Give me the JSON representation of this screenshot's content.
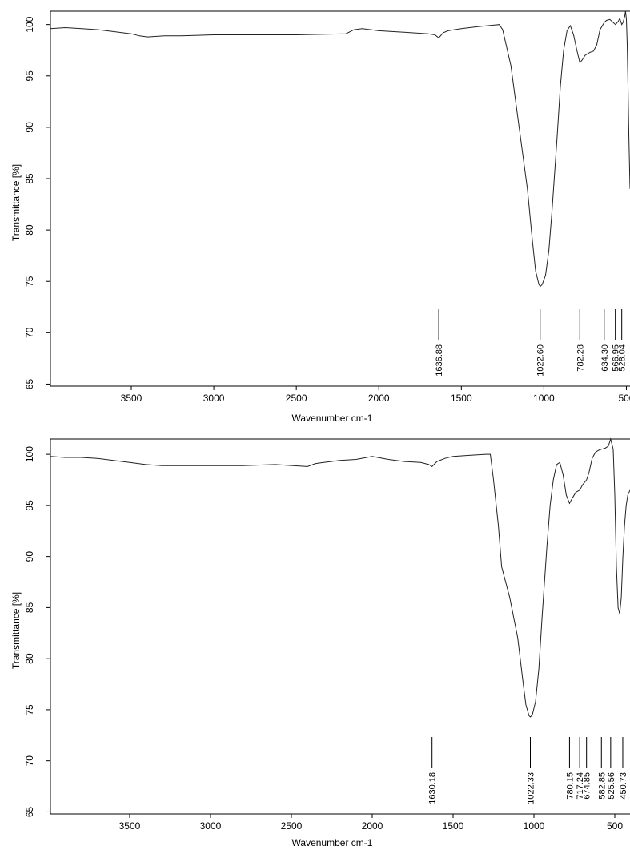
{
  "chart_data": [
    {
      "type": "line",
      "xlabel": "Wavenumber cm-1",
      "ylabel": "Transmittance [%]",
      "xlim": [
        3990,
        478
      ],
      "ylim": [
        64.8,
        101.3
      ],
      "x_reversed": true,
      "x_ticks": [
        3500,
        3000,
        2500,
        2000,
        1500,
        1000,
        500
      ],
      "y_ticks": [
        65,
        70,
        75,
        80,
        85,
        90,
        95,
        100
      ],
      "series": [
        {
          "x": [
            3990,
            3900,
            3800,
            3700,
            3600,
            3500,
            3450,
            3400,
            3300,
            3200,
            3000,
            2800,
            2500,
            2200,
            2150,
            2100,
            2000,
            1900,
            1800,
            1700,
            1660,
            1637,
            1610,
            1580,
            1500,
            1400,
            1300,
            1270,
            1250,
            1200,
            1150,
            1100,
            1070,
            1050,
            1030,
            1022,
            1010,
            990,
            970,
            950,
            920,
            900,
            880,
            860,
            840,
            820,
            800,
            782,
            770,
            750,
            720,
            700,
            680,
            660,
            634,
            620,
            600,
            580,
            566,
            550,
            540,
            528,
            520,
            510,
            505,
            500,
            495,
            490,
            485,
            478
          ],
          "y": [
            99.6,
            99.7,
            99.6,
            99.5,
            99.3,
            99.1,
            98.9,
            98.8,
            98.9,
            98.9,
            99.0,
            99.0,
            99.0,
            99.1,
            99.5,
            99.6,
            99.4,
            99.3,
            99.2,
            99.1,
            99.0,
            98.7,
            99.2,
            99.4,
            99.6,
            99.8,
            99.95,
            100.0,
            99.5,
            96.0,
            90.0,
            84.0,
            79.0,
            76.0,
            74.7,
            74.5,
            74.7,
            75.6,
            78.0,
            82.0,
            89.0,
            94.0,
            97.5,
            99.4,
            99.9,
            99.0,
            97.5,
            96.3,
            96.5,
            97.0,
            97.3,
            97.4,
            98.0,
            99.5,
            100.2,
            100.4,
            100.5,
            100.2,
            100.0,
            100.3,
            100.6,
            100.0,
            100.2,
            100.8,
            101.3,
            100.5,
            98.0,
            94.0,
            89.0,
            84.0
          ]
        }
      ],
      "peaks": [
        "1636.88",
        "1022.60",
        "782.28",
        "634.30",
        "566.95",
        "528.04"
      ]
    },
    {
      "type": "line",
      "xlabel": "Wavenumber cm-1",
      "ylabel": "Transmittance [%]",
      "xlim": [
        3990,
        406
      ],
      "ylim": [
        64.8,
        101.5
      ],
      "x_reversed": true,
      "x_ticks": [
        3500,
        3000,
        2500,
        2000,
        1500,
        1000,
        500
      ],
      "y_ticks": [
        65,
        70,
        75,
        80,
        85,
        90,
        95,
        100
      ],
      "series": [
        {
          "x": [
            3990,
            3900,
            3800,
            3700,
            3600,
            3500,
            3400,
            3300,
            3200,
            3000,
            2800,
            2600,
            2400,
            2350,
            2300,
            2200,
            2100,
            2000,
            1900,
            1800,
            1700,
            1650,
            1630,
            1600,
            1550,
            1500,
            1400,
            1300,
            1270,
            1250,
            1220,
            1200,
            1150,
            1100,
            1070,
            1050,
            1030,
            1022,
            1010,
            990,
            970,
            950,
            920,
            900,
            880,
            860,
            840,
            820,
            800,
            780,
            760,
            740,
            717,
            700,
            675,
            660,
            640,
            620,
            600,
            583,
            560,
            540,
            526,
            510,
            500,
            490,
            480,
            470,
            460,
            450,
            440,
            430,
            420,
            406
          ],
          "y": [
            99.8,
            99.7,
            99.7,
            99.6,
            99.4,
            99.2,
            99.0,
            98.9,
            98.9,
            98.9,
            98.9,
            99.0,
            98.8,
            99.1,
            99.2,
            99.4,
            99.5,
            99.8,
            99.5,
            99.3,
            99.2,
            99.0,
            98.8,
            99.3,
            99.6,
            99.8,
            99.9,
            100.0,
            100.0,
            97.5,
            93.0,
            89.0,
            86.0,
            82.0,
            78.0,
            75.5,
            74.4,
            74.3,
            74.5,
            75.8,
            79.0,
            84.0,
            91.0,
            95.0,
            97.5,
            99.0,
            99.2,
            98.0,
            96.0,
            95.2,
            95.8,
            96.3,
            96.5,
            97.0,
            97.5,
            98.2,
            99.6,
            100.2,
            100.4,
            100.5,
            100.6,
            100.8,
            101.5,
            100.5,
            96.0,
            89.0,
            85.0,
            84.4,
            86.0,
            90.0,
            93.0,
            95.0,
            96.0,
            96.5
          ]
        }
      ],
      "peaks": [
        "1630.18",
        "1022.33",
        "780.15",
        "717.24",
        "674.85",
        "582.85",
        "525.56",
        "450.73"
      ]
    }
  ]
}
